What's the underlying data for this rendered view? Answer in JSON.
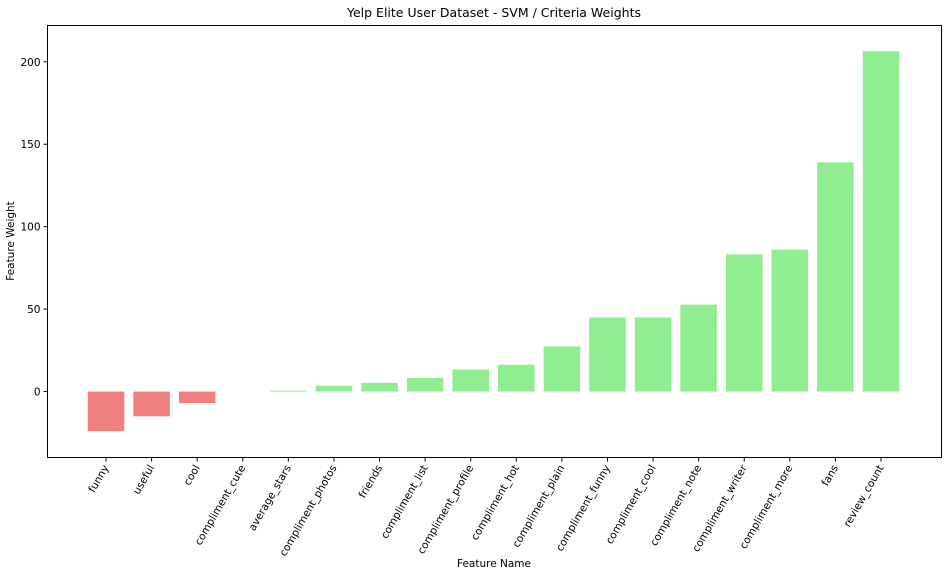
{
  "chart_data": {
    "type": "bar",
    "title": "Yelp Elite User Dataset - SVM / Criteria Weights",
    "xlabel": "Feature Name",
    "ylabel": "Feature Weight",
    "ylim": [
      -40,
      222
    ],
    "yticks": [
      0,
      50,
      100,
      150,
      200
    ],
    "grid": false,
    "categories": [
      "funny",
      "useful",
      "cool",
      "compliment_cute",
      "average_stars",
      "compliment_photos",
      "friends",
      "compliment_list",
      "compliment_profile",
      "compliment_hot",
      "compliment_plain",
      "compliment_funny",
      "compliment_cool",
      "compliment_note",
      "compliment_writer",
      "compliment_more",
      "fans",
      "review_count"
    ],
    "values": [
      -24,
      -15,
      -7,
      0,
      0.6,
      3.5,
      5.3,
      8.2,
      13.4,
      16.3,
      27.4,
      44.9,
      44.9,
      52.7,
      83.2,
      86.1,
      139.0,
      206.4
    ],
    "colors": {
      "positive": "#90ee90",
      "negative": "#f08080"
    }
  }
}
